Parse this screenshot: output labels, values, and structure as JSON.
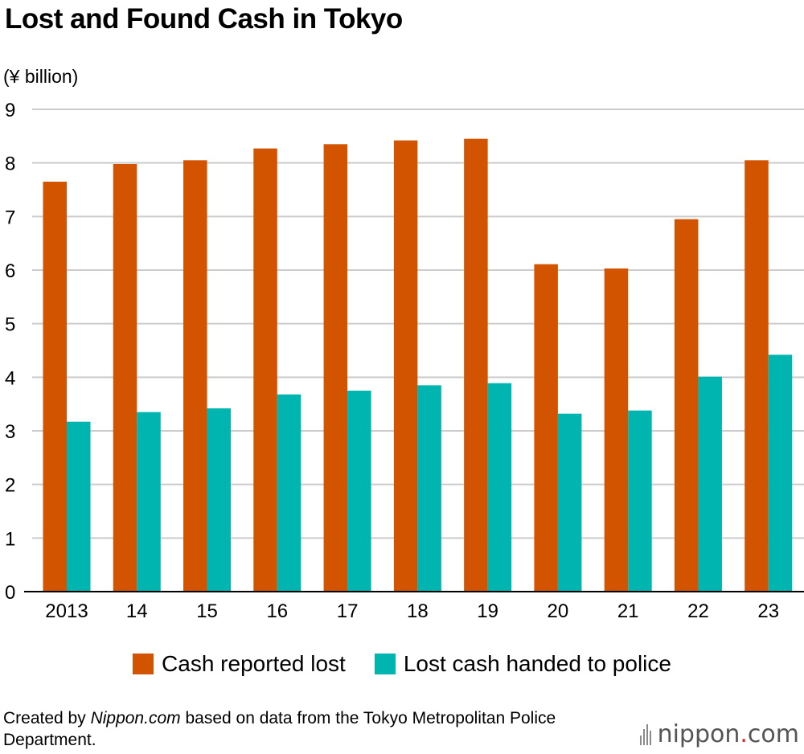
{
  "chart_data": {
    "type": "bar",
    "title": "Lost and Found Cash in Tokyo",
    "ylabel": "(¥ billion)",
    "xlabel": "",
    "ylim": [
      0,
      9
    ],
    "yticks": [
      "0",
      "1",
      "2",
      "3",
      "4",
      "5",
      "6",
      "7",
      "8",
      "9"
    ],
    "grid": true,
    "legend_position": "bottom",
    "categories": [
      "2013",
      "14",
      "15",
      "16",
      "17",
      "18",
      "19",
      "20",
      "21",
      "22",
      "23"
    ],
    "series": [
      {
        "name": "Cash reported lost",
        "color": "#d35400",
        "values": [
          7.65,
          7.98,
          8.05,
          8.27,
          8.35,
          8.42,
          8.45,
          6.11,
          6.03,
          6.95,
          8.05
        ]
      },
      {
        "name": "Lost cash handed to police",
        "color": "#00b5b0",
        "values": [
          3.17,
          3.35,
          3.42,
          3.68,
          3.75,
          3.85,
          3.89,
          3.32,
          3.38,
          4.01,
          4.42
        ]
      }
    ]
  },
  "footer": {
    "prefix": "Created by ",
    "source_name": "Nippon.com",
    "suffix": " based on data from the Tokyo Metropolitan Police Department."
  },
  "logo": {
    "text_main": "nippon",
    "text_dot": ".",
    "text_end": "com"
  },
  "colors": {
    "grid": "#cccccc",
    "axis": "#000000"
  }
}
